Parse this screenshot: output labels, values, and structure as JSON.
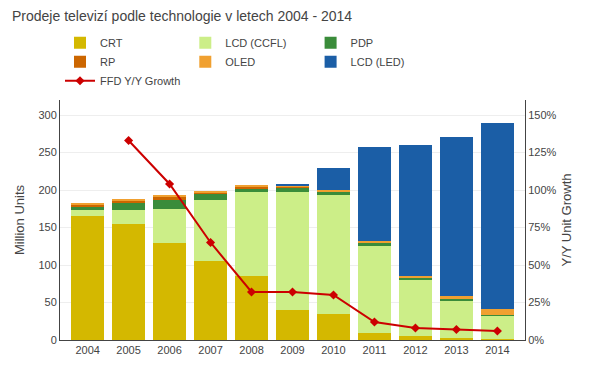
{
  "chart_data": {
    "type": "bar",
    "title": "Prodeje televizí podle technologie v letech 2004 - 2014",
    "ylabel": "Million Units",
    "y2label": "Y/Y Unit Growth",
    "categories": [
      "2004",
      "2005",
      "2006",
      "2007",
      "2008",
      "2009",
      "2010",
      "2011",
      "2012",
      "2013",
      "2014"
    ],
    "stacked": true,
    "grid": true,
    "series": [
      {
        "name": "CRT",
        "color": "#d4b800",
        "values": [
          165,
          155,
          130,
          105,
          85,
          40,
          35,
          10,
          5,
          3,
          2
        ]
      },
      {
        "name": "LCD (CCFL)",
        "color": "#ccee88",
        "values": [
          8,
          18,
          45,
          82,
          112,
          158,
          158,
          115,
          75,
          50,
          30
        ]
      },
      {
        "name": "PDP",
        "color": "#3a8c3a",
        "values": [
          5,
          10,
          12,
          8,
          5,
          5,
          5,
          5,
          3,
          2,
          1
        ]
      },
      {
        "name": "RP",
        "color": "#cc6600",
        "values": [
          3,
          3,
          4,
          2,
          2,
          1,
          0,
          0,
          0,
          0,
          0
        ]
      },
      {
        "name": "OLED",
        "color": "#f0a030",
        "values": [
          2,
          2,
          2,
          2,
          2,
          2,
          2,
          2,
          2,
          4,
          8
        ]
      },
      {
        "name": "LCD (LED)",
        "color": "#1b5ea6",
        "values": [
          0,
          0,
          0,
          0,
          0,
          2,
          30,
          125,
          175,
          212,
          248
        ]
      },
      {
        "name": "FFD Y/Y Growth",
        "type": "line",
        "axis": "y2",
        "marker": "diamond",
        "color": "#cc0000",
        "values": [
          null,
          1.33,
          1.04,
          0.65,
          0.32,
          0.32,
          0.3,
          0.12,
          0.08,
          0.07,
          0.06
        ]
      }
    ],
    "ylim": [
      0,
      320
    ],
    "yticks": [
      0,
      50,
      100,
      150,
      200,
      250,
      300
    ],
    "y2lim": [
      0,
      1.6
    ],
    "y2ticks": [
      {
        "value": 0.0,
        "label": "0%"
      },
      {
        "value": 0.25,
        "label": "25%"
      },
      {
        "value": 0.5,
        "label": "50%"
      },
      {
        "value": 0.75,
        "label": "75%"
      },
      {
        "value": 1.0,
        "label": "100%"
      },
      {
        "value": 1.25,
        "label": "125%"
      },
      {
        "value": 1.5,
        "label": "150%"
      }
    ]
  }
}
